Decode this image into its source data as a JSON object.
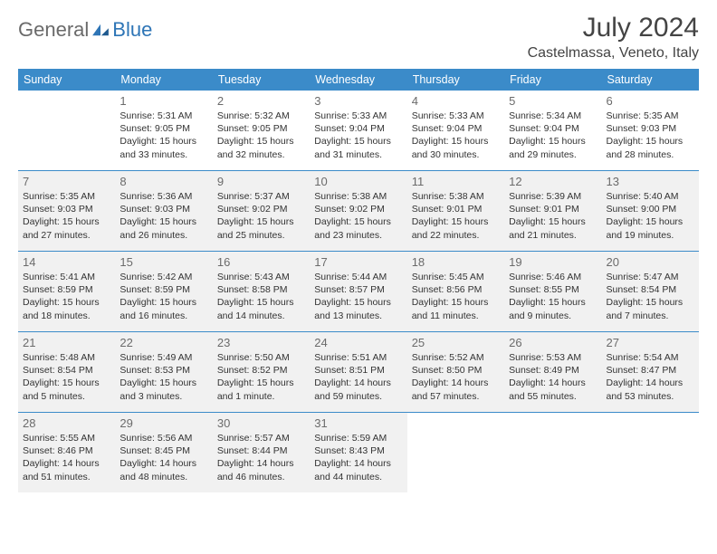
{
  "brand": {
    "part1": "General",
    "part2": "Blue"
  },
  "title": "July 2024",
  "location": "Castelmassa, Veneto, Italy",
  "colors": {
    "header_bg": "#3b8bc9",
    "header_text": "#ffffff",
    "shaded_bg": "#f1f1f1",
    "border": "#3b8bc9",
    "brand_gray": "#6a6a6a",
    "brand_blue": "#2e75b6"
  },
  "weekdays": [
    "Sunday",
    "Monday",
    "Tuesday",
    "Wednesday",
    "Thursday",
    "Friday",
    "Saturday"
  ],
  "weeks": [
    [
      {
        "n": "",
        "sr": "",
        "ss": "",
        "dl": "",
        "shaded": false
      },
      {
        "n": "1",
        "sr": "5:31 AM",
        "ss": "9:05 PM",
        "dl": "15 hours and 33 minutes.",
        "shaded": false
      },
      {
        "n": "2",
        "sr": "5:32 AM",
        "ss": "9:05 PM",
        "dl": "15 hours and 32 minutes.",
        "shaded": false
      },
      {
        "n": "3",
        "sr": "5:33 AM",
        "ss": "9:04 PM",
        "dl": "15 hours and 31 minutes.",
        "shaded": false
      },
      {
        "n": "4",
        "sr": "5:33 AM",
        "ss": "9:04 PM",
        "dl": "15 hours and 30 minutes.",
        "shaded": false
      },
      {
        "n": "5",
        "sr": "5:34 AM",
        "ss": "9:04 PM",
        "dl": "15 hours and 29 minutes.",
        "shaded": false
      },
      {
        "n": "6",
        "sr": "5:35 AM",
        "ss": "9:03 PM",
        "dl": "15 hours and 28 minutes.",
        "shaded": false
      }
    ],
    [
      {
        "n": "7",
        "sr": "5:35 AM",
        "ss": "9:03 PM",
        "dl": "15 hours and 27 minutes.",
        "shaded": true
      },
      {
        "n": "8",
        "sr": "5:36 AM",
        "ss": "9:03 PM",
        "dl": "15 hours and 26 minutes.",
        "shaded": true
      },
      {
        "n": "9",
        "sr": "5:37 AM",
        "ss": "9:02 PM",
        "dl": "15 hours and 25 minutes.",
        "shaded": true
      },
      {
        "n": "10",
        "sr": "5:38 AM",
        "ss": "9:02 PM",
        "dl": "15 hours and 23 minutes.",
        "shaded": true
      },
      {
        "n": "11",
        "sr": "5:38 AM",
        "ss": "9:01 PM",
        "dl": "15 hours and 22 minutes.",
        "shaded": true
      },
      {
        "n": "12",
        "sr": "5:39 AM",
        "ss": "9:01 PM",
        "dl": "15 hours and 21 minutes.",
        "shaded": true
      },
      {
        "n": "13",
        "sr": "5:40 AM",
        "ss": "9:00 PM",
        "dl": "15 hours and 19 minutes.",
        "shaded": true
      }
    ],
    [
      {
        "n": "14",
        "sr": "5:41 AM",
        "ss": "8:59 PM",
        "dl": "15 hours and 18 minutes.",
        "shaded": true
      },
      {
        "n": "15",
        "sr": "5:42 AM",
        "ss": "8:59 PM",
        "dl": "15 hours and 16 minutes.",
        "shaded": true
      },
      {
        "n": "16",
        "sr": "5:43 AM",
        "ss": "8:58 PM",
        "dl": "15 hours and 14 minutes.",
        "shaded": true
      },
      {
        "n": "17",
        "sr": "5:44 AM",
        "ss": "8:57 PM",
        "dl": "15 hours and 13 minutes.",
        "shaded": true
      },
      {
        "n": "18",
        "sr": "5:45 AM",
        "ss": "8:56 PM",
        "dl": "15 hours and 11 minutes.",
        "shaded": true
      },
      {
        "n": "19",
        "sr": "5:46 AM",
        "ss": "8:55 PM",
        "dl": "15 hours and 9 minutes.",
        "shaded": true
      },
      {
        "n": "20",
        "sr": "5:47 AM",
        "ss": "8:54 PM",
        "dl": "15 hours and 7 minutes.",
        "shaded": true
      }
    ],
    [
      {
        "n": "21",
        "sr": "5:48 AM",
        "ss": "8:54 PM",
        "dl": "15 hours and 5 minutes.",
        "shaded": true
      },
      {
        "n": "22",
        "sr": "5:49 AM",
        "ss": "8:53 PM",
        "dl": "15 hours and 3 minutes.",
        "shaded": true
      },
      {
        "n": "23",
        "sr": "5:50 AM",
        "ss": "8:52 PM",
        "dl": "15 hours and 1 minute.",
        "shaded": true
      },
      {
        "n": "24",
        "sr": "5:51 AM",
        "ss": "8:51 PM",
        "dl": "14 hours and 59 minutes.",
        "shaded": true
      },
      {
        "n": "25",
        "sr": "5:52 AM",
        "ss": "8:50 PM",
        "dl": "14 hours and 57 minutes.",
        "shaded": true
      },
      {
        "n": "26",
        "sr": "5:53 AM",
        "ss": "8:49 PM",
        "dl": "14 hours and 55 minutes.",
        "shaded": true
      },
      {
        "n": "27",
        "sr": "5:54 AM",
        "ss": "8:47 PM",
        "dl": "14 hours and 53 minutes.",
        "shaded": true
      }
    ],
    [
      {
        "n": "28",
        "sr": "5:55 AM",
        "ss": "8:46 PM",
        "dl": "14 hours and 51 minutes.",
        "shaded": true
      },
      {
        "n": "29",
        "sr": "5:56 AM",
        "ss": "8:45 PM",
        "dl": "14 hours and 48 minutes.",
        "shaded": true
      },
      {
        "n": "30",
        "sr": "5:57 AM",
        "ss": "8:44 PM",
        "dl": "14 hours and 46 minutes.",
        "shaded": true
      },
      {
        "n": "31",
        "sr": "5:59 AM",
        "ss": "8:43 PM",
        "dl": "14 hours and 44 minutes.",
        "shaded": true
      },
      {
        "n": "",
        "sr": "",
        "ss": "",
        "dl": "",
        "shaded": false
      },
      {
        "n": "",
        "sr": "",
        "ss": "",
        "dl": "",
        "shaded": false
      },
      {
        "n": "",
        "sr": "",
        "ss": "",
        "dl": "",
        "shaded": false
      }
    ]
  ],
  "labels": {
    "sunrise": "Sunrise:",
    "sunset": "Sunset:",
    "daylight": "Daylight:"
  }
}
